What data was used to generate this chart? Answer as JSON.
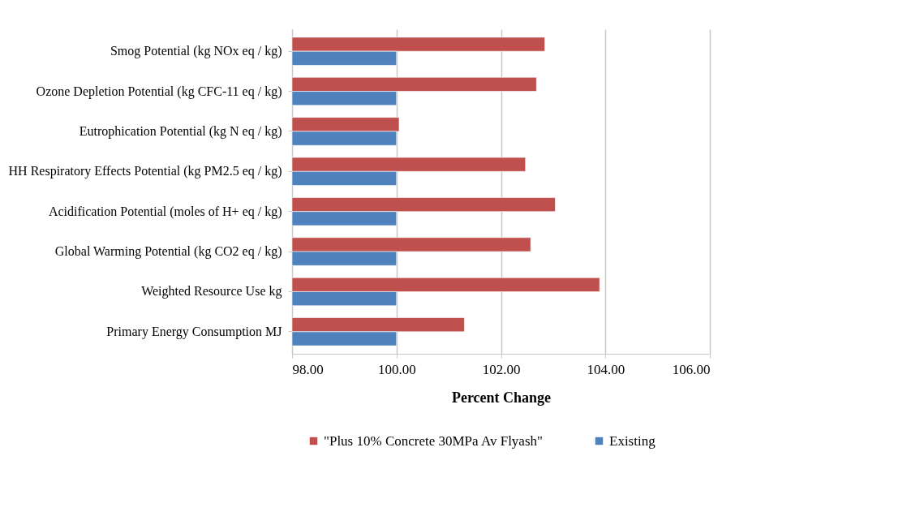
{
  "chart_data": {
    "type": "bar",
    "orientation": "horizontal",
    "xlabel": "Percent Change",
    "categories": [
      "Smog Potential (kg NOx eq / kg)",
      "Ozone Depletion Potential (kg CFC-11 eq / kg)",
      "Eutrophication Potential (kg N eq / kg)",
      "HH Respiratory Effects Potential (kg PM2.5 eq / kg)",
      "Acidification Potential (moles of H+ eq / kg)",
      "Global Warming Potential (kg CO2 eq / kg)",
      "Weighted Resource Use kg",
      "Primary Energy Consumption MJ"
    ],
    "series": [
      {
        "name": "\"Plus 10% Concrete 30MPa Av Flyash\"",
        "color": "#c0504d",
        "values": [
          102.84,
          102.68,
          100.05,
          102.47,
          103.04,
          102.57,
          103.89,
          101.3
        ]
      },
      {
        "name": "Existing",
        "color": "#4f81bd",
        "values": [
          100,
          100,
          100,
          100,
          100,
          100,
          100,
          100
        ]
      }
    ],
    "xlim": [
      98,
      106
    ],
    "xticks": [
      {
        "value": 98,
        "label": "98.00"
      },
      {
        "value": 100,
        "label": "100.00"
      },
      {
        "value": 102,
        "label": "102.00"
      },
      {
        "value": 104,
        "label": "104.00"
      },
      {
        "value": 106,
        "label": "106.00"
      }
    ],
    "grid": "x",
    "legend": "bottom"
  }
}
